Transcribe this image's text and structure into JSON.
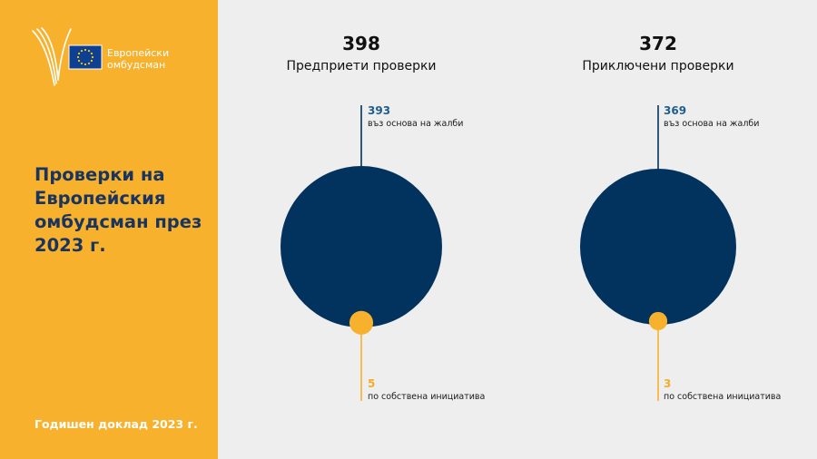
{
  "brand": {
    "logo_line1": "Европейски",
    "logo_line2": "омбудсман",
    "logo_icon": "eu-flag-icon",
    "colors": {
      "sidebar": "#f8b12d",
      "navy": "#02335f",
      "accent": "#f8b12d"
    }
  },
  "sidebar": {
    "title": "Проверки на Европейския омбудсман през 2023 г.",
    "footer": "Годишен доклад 2023 г."
  },
  "chart_data": [
    {
      "type": "pie",
      "total": 398,
      "title": "Предприети проверки",
      "slices": [
        {
          "label": "въз основа на жалби",
          "value": 393,
          "color": "#02335f"
        },
        {
          "label": "по собствена инициатива",
          "value": 5,
          "color": "#f8b12d"
        }
      ]
    },
    {
      "type": "pie",
      "total": 372,
      "title": "Приключени проверки",
      "slices": [
        {
          "label": "въз основа на жалби",
          "value": 369,
          "color": "#02335f"
        },
        {
          "label": "по собствена инициатива",
          "value": 3,
          "color": "#f8b12d"
        }
      ]
    }
  ]
}
